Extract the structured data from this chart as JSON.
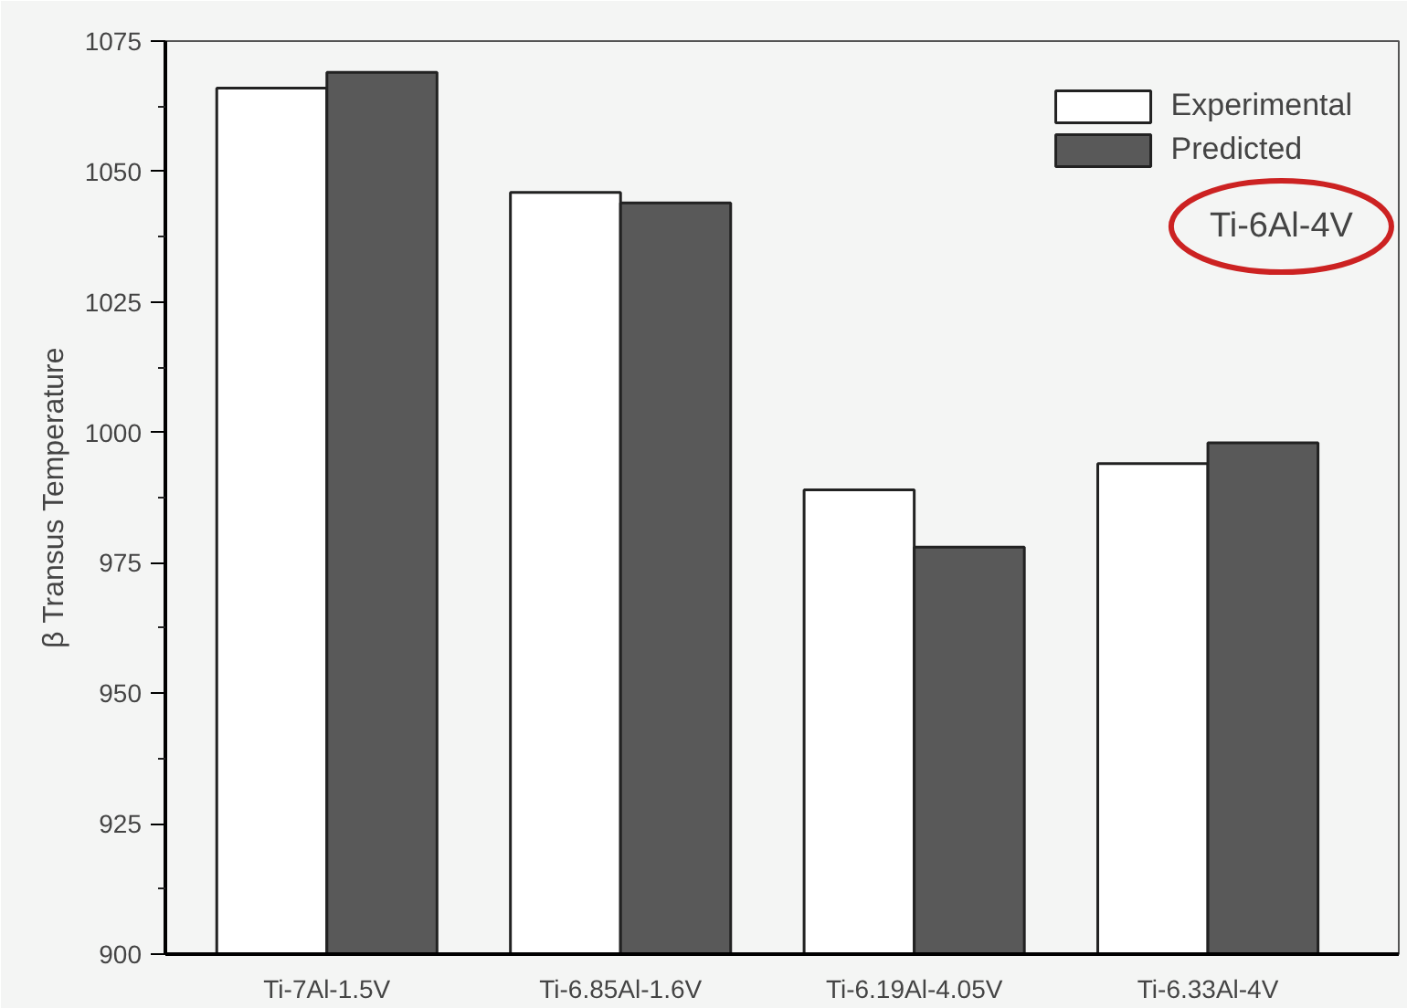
{
  "chart_data": {
    "type": "bar",
    "ylabel": "β Transus Temperature",
    "categories": [
      "Ti-7Al-1.5V",
      "Ti-6.85Al-1.6V",
      "Ti-6.19Al-4.05V",
      "Ti-6.33Al-4V"
    ],
    "series": [
      {
        "name": "Experimental",
        "color": "#ffffff",
        "values": [
          1066,
          1046,
          989,
          994
        ]
      },
      {
        "name": "Predicted",
        "color": "#595959",
        "values": [
          1069,
          1044,
          978,
          998
        ]
      }
    ],
    "ylim": [
      900,
      1075
    ],
    "yticks": [
      900,
      925,
      950,
      975,
      1000,
      1025,
      1050,
      1075
    ],
    "grid": false,
    "legend": "top right",
    "annotations": [
      "Ti-6Al-4V"
    ]
  }
}
